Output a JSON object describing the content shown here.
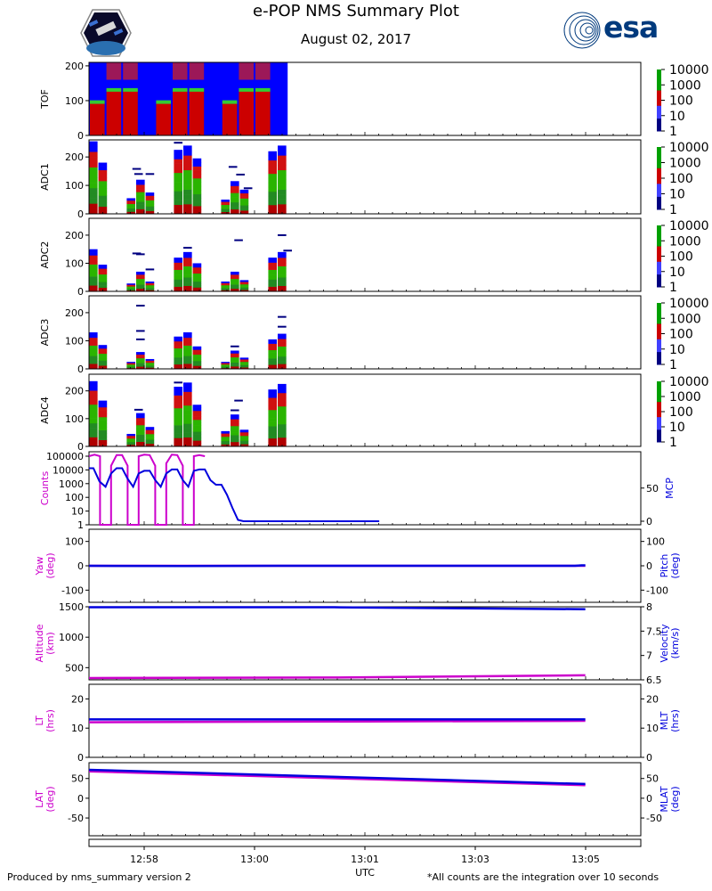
{
  "header": {
    "title": "e-POP NMS Summary Plot",
    "date": "August 02, 2017",
    "left_logo": "satellite-mission-logo",
    "right_logo": "esa"
  },
  "footer": {
    "left": "Produced by nms_summary version 2",
    "right": "*All counts are the integration over 10 seconds"
  },
  "chart_data": [
    {
      "type": "heatmap",
      "ylabel": "TOF",
      "yticks": [
        0,
        100,
        200
      ],
      "ylim": [
        0,
        210
      ],
      "colorbar": [
        "1",
        "10",
        "100",
        "1000",
        "10000"
      ],
      "blocks_x": [
        0.0,
        3.0,
        6.0,
        9.0,
        12.0,
        15.0,
        18.0,
        21.0,
        24.0,
        27.0,
        30.0,
        33.0,
        36.0
      ],
      "filled_until": 36.0
    },
    {
      "type": "heatmap",
      "ylabel": "ADC1",
      "yticks": [
        0,
        100,
        200
      ],
      "ylim": [
        0,
        260
      ],
      "colorbar": [
        "1",
        "10",
        "100",
        "1000",
        "10000"
      ],
      "bars": [
        [
          0.0,
          1.0,
          255
        ],
        [
          1.0,
          2.0,
          180
        ],
        [
          4.0,
          5.0,
          55
        ],
        [
          5.0,
          6.0,
          120
        ],
        [
          6.0,
          7.0,
          75
        ],
        [
          9.0,
          10.0,
          225
        ],
        [
          10.0,
          11.0,
          240
        ],
        [
          11.0,
          12.0,
          195
        ],
        [
          14.0,
          15.0,
          50
        ],
        [
          15.0,
          16.0,
          115
        ],
        [
          16.0,
          17.0,
          85
        ],
        [
          19.0,
          20.0,
          220
        ],
        [
          20.0,
          21.0,
          240
        ]
      ],
      "streaks": [
        [
          4.6,
          5.6,
          158
        ],
        [
          4.8,
          5.8,
          140
        ],
        [
          6.0,
          7.0,
          140
        ],
        [
          14.8,
          15.8,
          165
        ],
        [
          15.6,
          16.6,
          138
        ],
        [
          16.4,
          17.4,
          90
        ],
        [
          9.0,
          10.0,
          250
        ]
      ]
    },
    {
      "type": "heatmap",
      "ylabel": "ADC2",
      "yticks": [
        0,
        100,
        200
      ],
      "ylim": [
        0,
        260
      ],
      "colorbar": [
        "1",
        "10",
        "100",
        "1000",
        "10000"
      ],
      "bars": [
        [
          0.0,
          1.0,
          150
        ],
        [
          1.0,
          2.0,
          95
        ],
        [
          4.0,
          5.0,
          28
        ],
        [
          5.0,
          6.0,
          70
        ],
        [
          6.0,
          7.0,
          35
        ],
        [
          9.0,
          10.0,
          120
        ],
        [
          10.0,
          11.0,
          140
        ],
        [
          11.0,
          12.0,
          100
        ],
        [
          14.0,
          15.0,
          35
        ],
        [
          15.0,
          16.0,
          70
        ],
        [
          16.0,
          17.0,
          40
        ],
        [
          19.0,
          20.0,
          120
        ],
        [
          20.0,
          21.0,
          140
        ]
      ],
      "streaks": [
        [
          4.6,
          5.6,
          135
        ],
        [
          5.0,
          6.0,
          132
        ],
        [
          6.0,
          7.0,
          78
        ],
        [
          10.0,
          11.0,
          155
        ],
        [
          15.4,
          16.4,
          182
        ],
        [
          20.0,
          21.0,
          200
        ],
        [
          20.6,
          21.6,
          145
        ]
      ]
    },
    {
      "type": "heatmap",
      "ylabel": "ADC3",
      "yticks": [
        0,
        100,
        200
      ],
      "ylim": [
        0,
        260
      ],
      "colorbar": [
        "1",
        "10",
        "100",
        "1000",
        "10000"
      ],
      "bars": [
        [
          0.0,
          1.0,
          130
        ],
        [
          1.0,
          2.0,
          85
        ],
        [
          4.0,
          5.0,
          25
        ],
        [
          5.0,
          6.0,
          60
        ],
        [
          6.0,
          7.0,
          35
        ],
        [
          9.0,
          10.0,
          115
        ],
        [
          10.0,
          11.0,
          130
        ],
        [
          11.0,
          12.0,
          80
        ],
        [
          14.0,
          15.0,
          25
        ],
        [
          15.0,
          16.0,
          65
        ],
        [
          16.0,
          17.0,
          40
        ],
        [
          19.0,
          20.0,
          105
        ],
        [
          20.0,
          21.0,
          125
        ]
      ],
      "streaks": [
        [
          5.0,
          6.0,
          225
        ],
        [
          5.0,
          6.0,
          135
        ],
        [
          5.0,
          6.0,
          105
        ],
        [
          20.0,
          21.0,
          185
        ],
        [
          20.0,
          21.0,
          150
        ],
        [
          15.0,
          16.0,
          80
        ]
      ]
    },
    {
      "type": "heatmap",
      "ylabel": "ADC4",
      "yticks": [
        0,
        100,
        200
      ],
      "ylim": [
        0,
        260
      ],
      "colorbar": [
        "1",
        "10",
        "100",
        "1000",
        "10000"
      ],
      "bars": [
        [
          0.0,
          1.0,
          235
        ],
        [
          1.0,
          2.0,
          165
        ],
        [
          4.0,
          5.0,
          45
        ],
        [
          5.0,
          6.0,
          120
        ],
        [
          6.0,
          7.0,
          70
        ],
        [
          9.0,
          10.0,
          215
        ],
        [
          10.0,
          11.0,
          230
        ],
        [
          11.0,
          12.0,
          150
        ],
        [
          14.0,
          15.0,
          55
        ],
        [
          15.0,
          16.0,
          115
        ],
        [
          16.0,
          17.0,
          60
        ],
        [
          19.0,
          20.0,
          205
        ],
        [
          20.0,
          21.0,
          225
        ]
      ],
      "streaks": [
        [
          4.8,
          5.8,
          132
        ],
        [
          15.4,
          16.4,
          165
        ],
        [
          15.0,
          16.0,
          130
        ],
        [
          9.0,
          10.0,
          230
        ]
      ]
    },
    {
      "type": "line",
      "ylabel": "Counts",
      "y2label": "MCP",
      "yticks": [
        "100000",
        "10000",
        "1000",
        "100",
        "10",
        "1"
      ],
      "y2ticks": [
        0,
        50
      ],
      "series": [
        {
          "name": "Counts",
          "color": "#cc00cc",
          "scale": "log",
          "x": [
            0.0,
            1.0,
            2.0,
            2.0,
            4.0,
            4.0,
            5.0,
            6.0,
            7.0,
            7.0,
            9.0,
            9.0,
            10.0,
            11.0,
            12.0,
            12.0,
            14.0,
            14.0,
            15.0,
            16.0,
            17.0,
            17.0,
            19.0,
            19.0,
            20.0,
            21.0
          ],
          "y": [
            100000,
            130000,
            100000,
            1,
            1,
            20000,
            120000,
            120000,
            20000,
            1,
            1,
            100000,
            130000,
            120000,
            20000,
            1,
            1,
            30000,
            130000,
            120000,
            20000,
            1,
            1,
            100000,
            120000,
            100000
          ]
        },
        {
          "name": "MCP",
          "color": "#0000dd",
          "scale": "linear",
          "x": [
            0.0,
            0.8,
            1.9,
            3.0,
            4.0,
            5.0,
            6.0,
            7.0,
            8.0,
            9.0,
            10.0,
            11.0,
            12.0,
            13.0,
            14.0,
            15.0,
            16.0,
            17.0,
            18.0,
            19.0,
            20.0,
            21.0,
            22.0,
            23.0,
            24.0,
            25.0,
            26.0,
            27.0,
            28.0,
            29.0,
            30.0,
            33.0,
            36.0,
            39.0,
            43.0,
            47.0,
            50.0,
            52.6
          ],
          "y": [
            80,
            80,
            60,
            52,
            72,
            80,
            80,
            64,
            52,
            72,
            76,
            76,
            62,
            52,
            72,
            78,
            78,
            62,
            52,
            76,
            78,
            78,
            62,
            55,
            55,
            40,
            20,
            2,
            0,
            0,
            0,
            0,
            0,
            0,
            0,
            0,
            0,
            0
          ]
        }
      ]
    },
    {
      "type": "line",
      "ylabel": "Yaw\n(deg)",
      "y2label": "Pitch\n(deg)",
      "yticks": [
        -100,
        0,
        100
      ],
      "y2ticks": [
        -100,
        0,
        100
      ],
      "series": [
        {
          "name": "Yaw",
          "color": "#cc00cc",
          "x": [
            0,
            52.6
          ],
          "y": [
            0,
            0
          ]
        },
        {
          "name": "Pitch",
          "color": "#0000dd",
          "x": [
            0,
            10,
            20,
            30,
            40,
            51.5,
            52.2,
            52.6
          ],
          "y": [
            0,
            -1,
            0,
            0,
            0,
            0,
            2,
            2
          ]
        }
      ]
    },
    {
      "type": "line",
      "ylabel": "Altitude\n(km)",
      "y2label": "Velocity\n(km/s)",
      "yticks": [
        500,
        1000,
        1500
      ],
      "y2ticks": [
        6.5,
        7.0,
        7.5,
        8.0
      ],
      "series": [
        {
          "name": "Altitude",
          "color": "#cc00cc",
          "x": [
            0,
            26,
            52.6
          ],
          "y": [
            330,
            338,
            375
          ]
        },
        {
          "name": "Velocity",
          "color": "#0000dd",
          "x": [
            0,
            26,
            52.6
          ],
          "y": [
            7.99,
            7.99,
            7.95
          ]
        }
      ]
    },
    {
      "type": "line",
      "ylabel": "LT\n(hrs)",
      "y2label": "MLT\n(hrs)",
      "yticks": [
        0,
        10,
        20
      ],
      "y2ticks": [
        0,
        10,
        20
      ],
      "series": [
        {
          "name": "LT",
          "color": "#cc00cc",
          "x": [
            0,
            52.6
          ],
          "y": [
            12.0,
            12.5
          ]
        },
        {
          "name": "MLT",
          "color": "#0000dd",
          "x": [
            0,
            52.6
          ],
          "y": [
            13.0,
            13.0
          ]
        }
      ]
    },
    {
      "type": "line",
      "ylabel": "LAT\n(deg)",
      "y2label": "MLAT\n(deg)",
      "yticks": [
        -50,
        0,
        50
      ],
      "y2ticks": [
        -50,
        0,
        50
      ],
      "series": [
        {
          "name": "LAT",
          "color": "#cc00cc",
          "x": [
            0,
            52.6
          ],
          "y": [
            68,
            33
          ]
        },
        {
          "name": "MLAT",
          "color": "#0000dd",
          "x": [
            0,
            52.6
          ],
          "y": [
            72,
            36
          ]
        }
      ]
    }
  ],
  "x_axis": {
    "label": "UTC",
    "ticks": [
      "12:58",
      "13:00",
      "13:01",
      "13:03",
      "13:05"
    ],
    "tick_positions": [
      10.0,
      30.0,
      50.0,
      70.0,
      90.0
    ]
  }
}
